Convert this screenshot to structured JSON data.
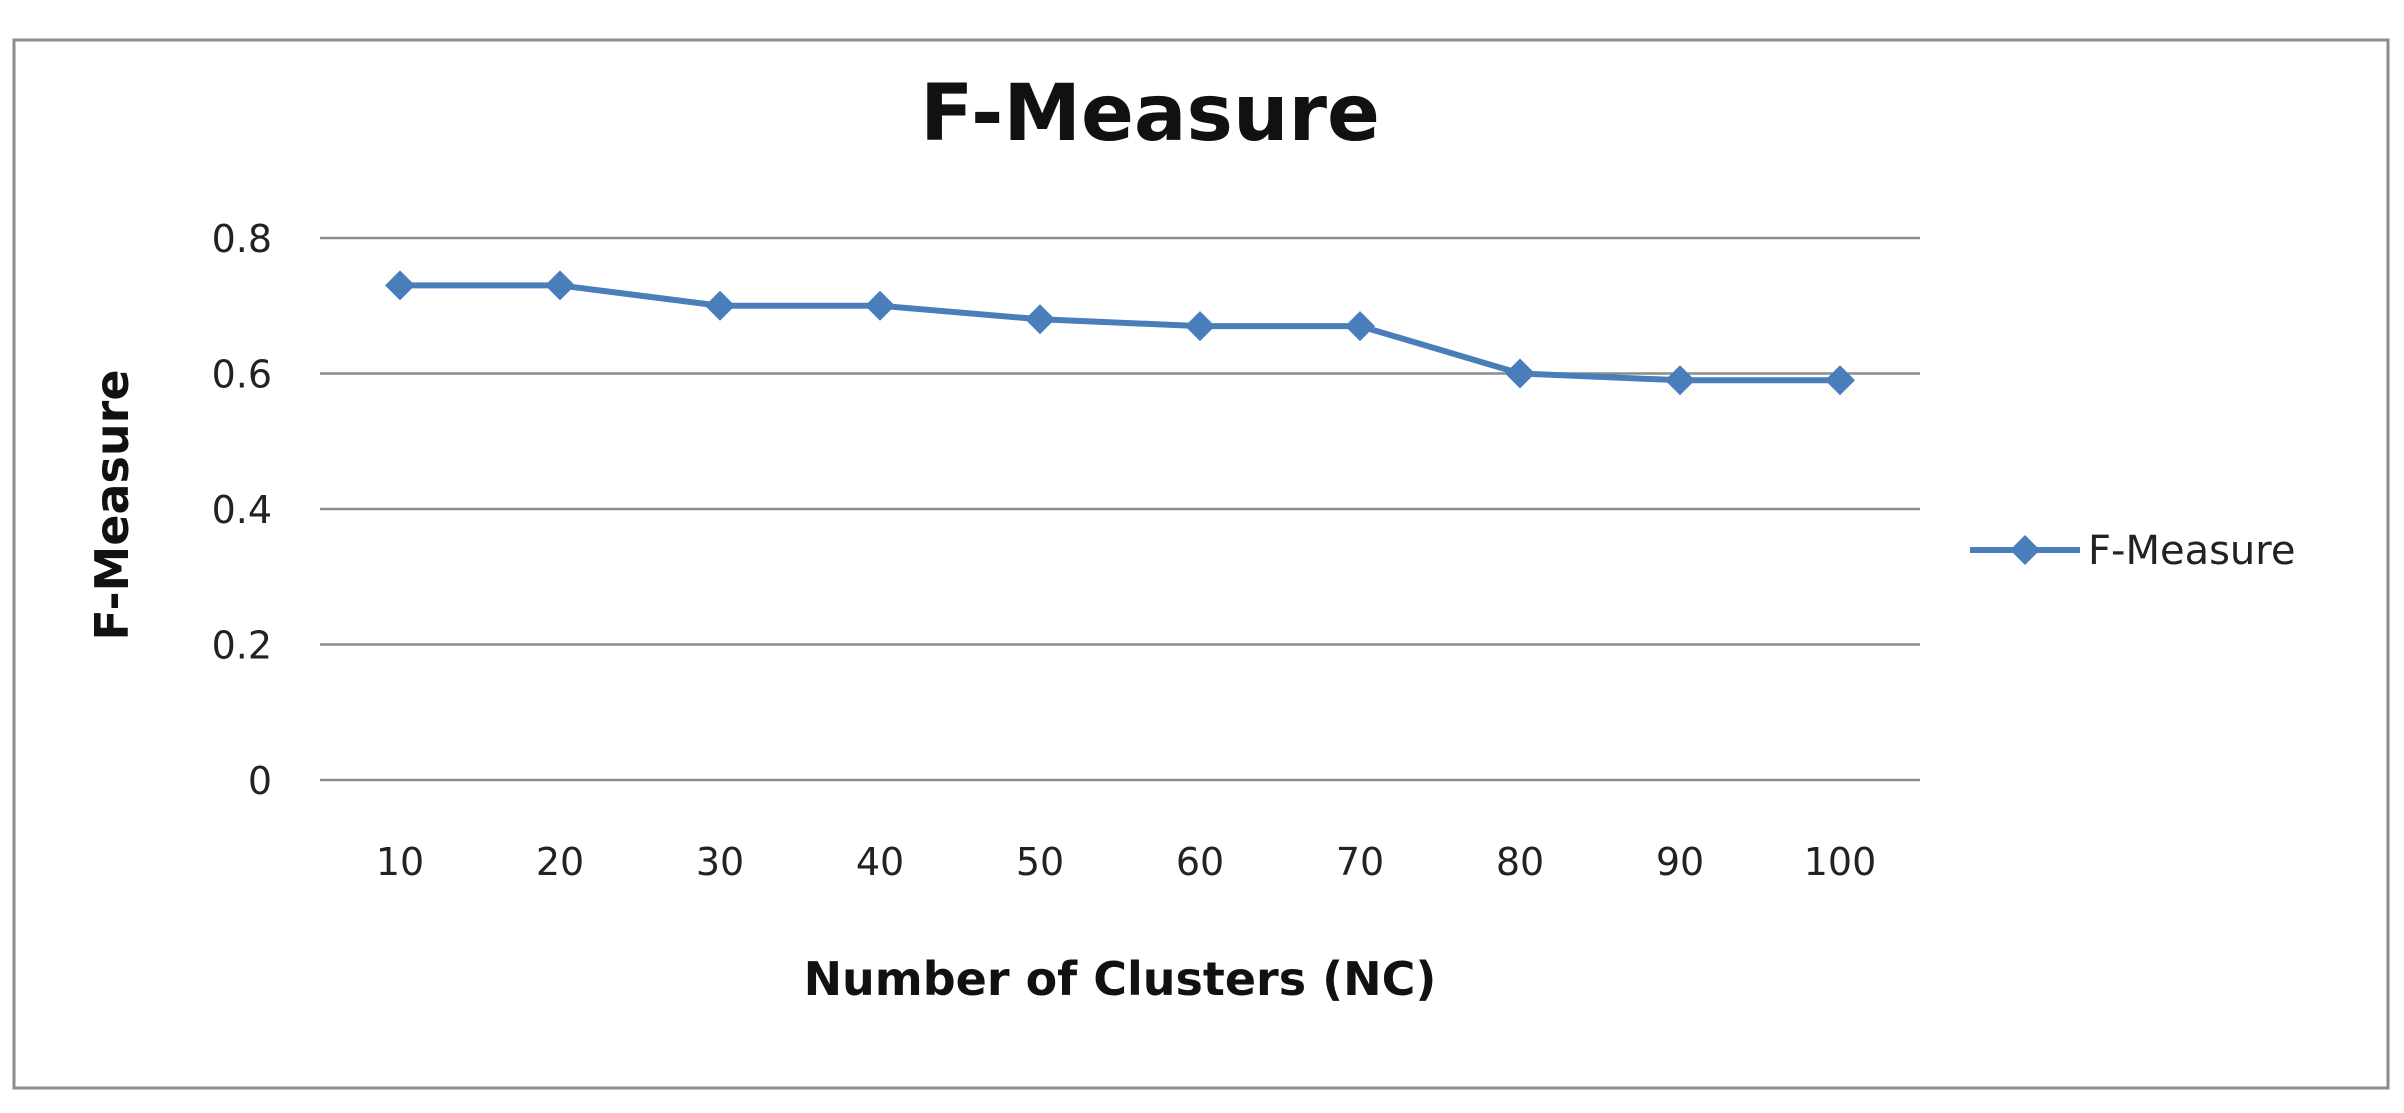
{
  "chart_data": {
    "type": "line",
    "title": "F-Measure",
    "xlabel": "Number of Clusters (NC)",
    "ylabel": "F-Measure",
    "categories": [
      "10",
      "20",
      "30",
      "40",
      "50",
      "60",
      "70",
      "80",
      "90",
      "100"
    ],
    "series": [
      {
        "name": "F-Measure",
        "values": [
          0.73,
          0.73,
          0.7,
          0.7,
          0.68,
          0.67,
          0.67,
          0.6,
          0.59,
          0.59
        ],
        "color": "#4a7ebb",
        "marker": "diamond"
      }
    ],
    "yticks": [
      "0",
      "0.2",
      "0.4",
      "0.6",
      "0.8"
    ],
    "ylim": [
      0,
      0.8
    ],
    "grid": "horizontal",
    "legend_position": "right"
  }
}
